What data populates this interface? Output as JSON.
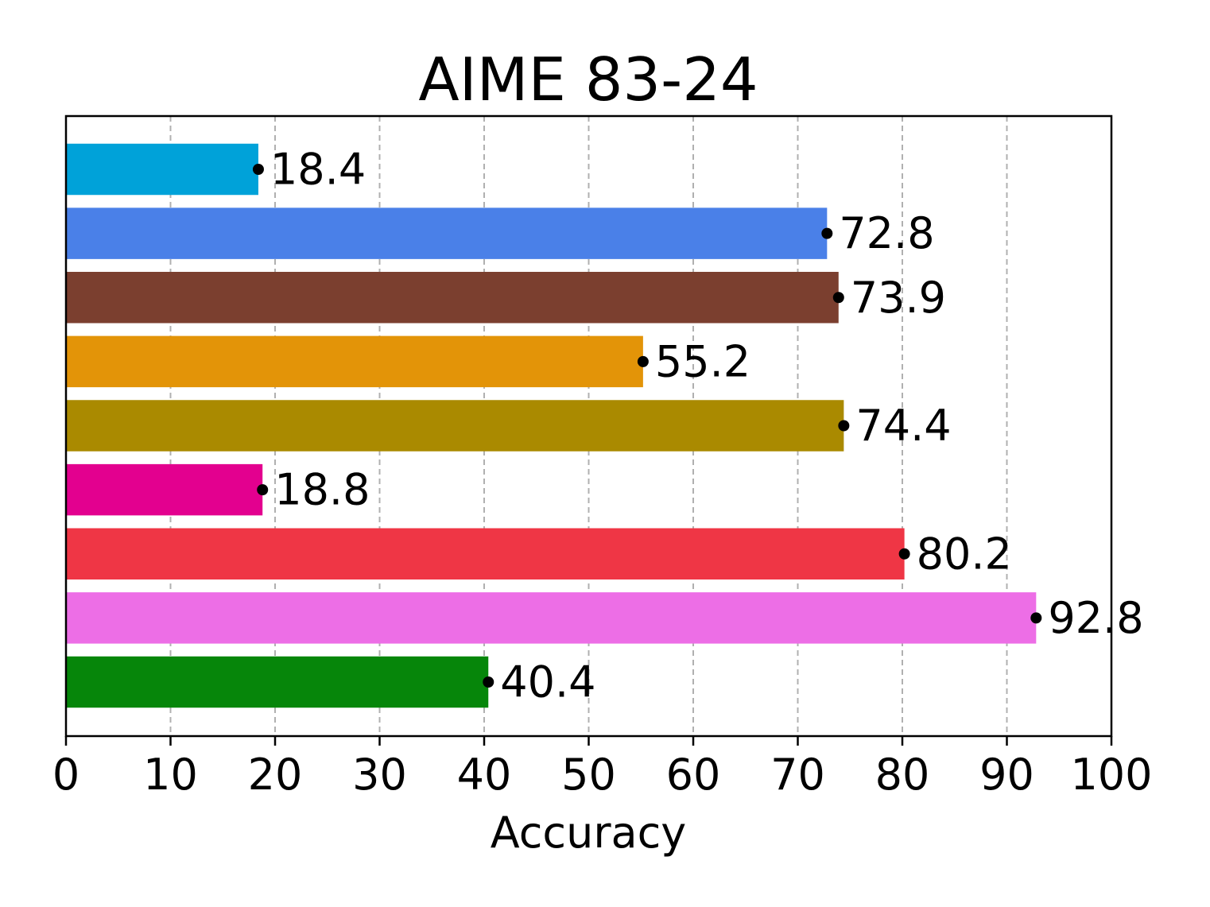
{
  "chart_data": {
    "type": "bar",
    "orientation": "horizontal",
    "title": "AIME 83-24",
    "xlabel": "Accuracy",
    "ylabel": "",
    "xlim": [
      0,
      100
    ],
    "xticks": [
      "0",
      "10",
      "20",
      "30",
      "40",
      "50",
      "60",
      "70",
      "80",
      "90",
      "100"
    ],
    "grid": "vertical dashed",
    "values": [
      18.4,
      72.8,
      73.9,
      55.2,
      74.4,
      18.8,
      80.2,
      92.8,
      40.4
    ],
    "labels": [
      "18.4",
      "72.8",
      "73.9",
      "55.2",
      "74.4",
      "18.8",
      "80.2",
      "92.8",
      "40.4"
    ],
    "colors": [
      "#00a2d9",
      "#4a80e8",
      "#7b3f2f",
      "#e39408",
      "#aa8a00",
      "#e3008f",
      "#ef3645",
      "#ed6ee6",
      "#06860a"
    ]
  }
}
